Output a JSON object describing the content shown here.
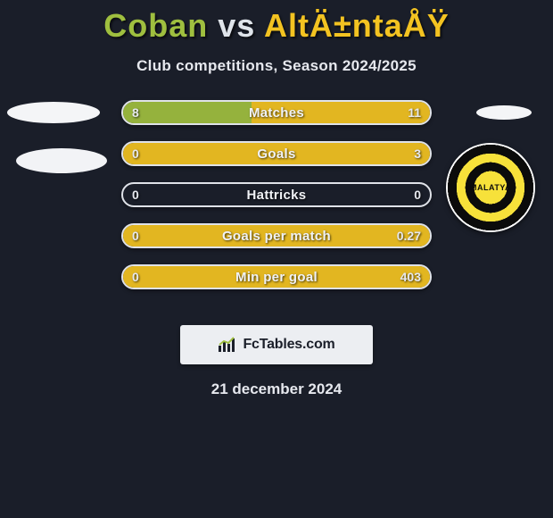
{
  "title": {
    "player1": "Coban",
    "vs": "vs",
    "player2": "AltÄ±ntaÅŸ",
    "player1_color": "#9fbf3f",
    "vs_color": "#dfe4ea",
    "player2_color": "#f3c321"
  },
  "subtitle": "Club competitions, Season 2024/2025",
  "colors": {
    "background": "#1a1e29",
    "bar_border": "#dfe2e8",
    "left_fill": "#9fbf3f",
    "right_fill": "#f3c321",
    "text": "#e6e8ee"
  },
  "bars": [
    {
      "label": "Matches",
      "left": "8",
      "right": "11",
      "leftPct": 42,
      "rightPct": 58
    },
    {
      "label": "Goals",
      "left": "0",
      "right": "3",
      "leftPct": 0,
      "rightPct": 100
    },
    {
      "label": "Hattricks",
      "left": "0",
      "right": "0",
      "leftPct": 0,
      "rightPct": 0
    },
    {
      "label": "Goals per match",
      "left": "0",
      "right": "0.27",
      "leftPct": 0,
      "rightPct": 100
    },
    {
      "label": "Min per goal",
      "left": "0",
      "right": "403",
      "leftPct": 0,
      "rightPct": 100
    }
  ],
  "crest": {
    "text": "MALATYA",
    "ring_colors": [
      "#f7e13a",
      "#0b0b0b",
      "#ffffff"
    ]
  },
  "brand": {
    "name": "FcTables.com"
  },
  "date": "21 december 2024"
}
